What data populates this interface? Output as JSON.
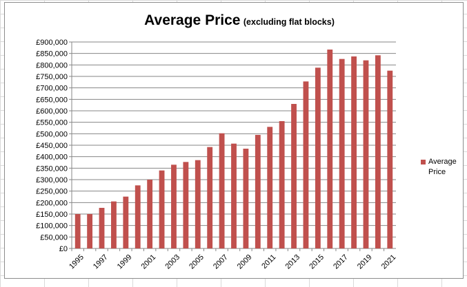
{
  "title": {
    "main": "Average Price",
    "sub": "(excluding flat blocks)"
  },
  "colors": {
    "bar": "#c0504d",
    "gridline": "#868686",
    "axis": "#868686"
  },
  "chart_data": {
    "type": "bar",
    "title": "Average Price (excluding flat blocks)",
    "xlabel": "",
    "ylabel": "",
    "ylim": [
      0,
      900000
    ],
    "ytick_step": 50000,
    "ytick_labels": [
      "£0",
      "£50,000",
      "£100,000",
      "£150,000",
      "£200,000",
      "£250,000",
      "£300,000",
      "£350,000",
      "£400,000",
      "£450,000",
      "£500,000",
      "£550,000",
      "£600,000",
      "£650,000",
      "£700,000",
      "£750,000",
      "£800,000",
      "£850,000",
      "£900,000"
    ],
    "xtick_labels": [
      "1995",
      "1997",
      "1999",
      "2001",
      "2003",
      "2005",
      "2007",
      "2009",
      "2011",
      "2013",
      "2015",
      "2017",
      "2019",
      "2021"
    ],
    "categories": [
      "1995",
      "1996",
      "1997",
      "1998",
      "1999",
      "2000",
      "2001",
      "2002",
      "2003",
      "2004",
      "2005",
      "2006",
      "2007",
      "2008",
      "2009",
      "2010",
      "2011",
      "2012",
      "2013",
      "2014",
      "2015",
      "2016",
      "2017",
      "2018",
      "2019",
      "2020",
      "2021"
    ],
    "series": [
      {
        "name": "Average Price",
        "values": [
          150000,
          150000,
          177000,
          205000,
          226000,
          275000,
          300000,
          340000,
          365000,
          377000,
          385000,
          442000,
          502000,
          457000,
          435000,
          495000,
          530000,
          555000,
          630000,
          728000,
          788000,
          867000,
          826000,
          837000,
          820000,
          842000,
          775000
        ]
      }
    ],
    "grid": true,
    "legend_position": "right"
  },
  "legend": {
    "label": "Average Price"
  }
}
